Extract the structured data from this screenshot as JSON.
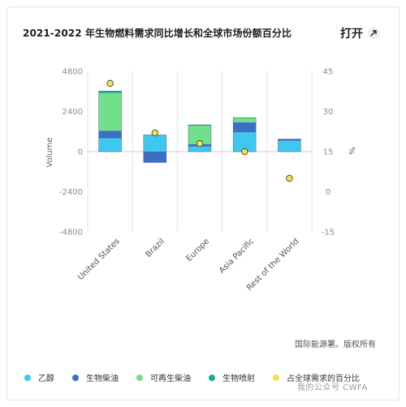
{
  "header": {
    "title": "2021-2022 年生物燃料需求同比增长和全球市场份额百分比",
    "open_label": "打开",
    "open_icon": "expand-icon"
  },
  "source": "国际能源署。版权所有",
  "watermark": "我的公众号 CWFA",
  "legend": [
    {
      "label": "乙醇",
      "color": "#3ec8f0"
    },
    {
      "label": "生物柴油",
      "color": "#3a6fc4"
    },
    {
      "label": "可再生柴油",
      "color": "#72e08a"
    },
    {
      "label": "生物喷射",
      "color": "#1aa999"
    },
    {
      "label": "占全球需求的百分比",
      "color": "#f2e24a"
    }
  ],
  "chart_data": {
    "type": "bar",
    "stacked": true,
    "categories": [
      "United States",
      "Brazil",
      "Europe",
      "Asia Pacific",
      "Rest of the World"
    ],
    "series": [
      {
        "name": "乙醇",
        "color": "#3ec8f0",
        "values": [
          800,
          1000,
          300,
          1150,
          650
        ]
      },
      {
        "name": "生物柴油",
        "color": "#3a6fc4",
        "values": [
          450,
          -650,
          150,
          600,
          100
        ]
      },
      {
        "name": "可再生柴油",
        "color": "#72e08a",
        "values": [
          2250,
          0,
          1100,
          270,
          0
        ]
      },
      {
        "name": "生物喷射",
        "color": "#1aa999",
        "values": [
          120,
          0,
          50,
          10,
          0
        ]
      }
    ],
    "share_series": {
      "name": "占全球需求的百分比",
      "color": "#f2e24a",
      "values": [
        40.5,
        22,
        18,
        15,
        5
      ]
    },
    "ylabel": "Volume",
    "y2label": "%",
    "ylim": [
      -4800,
      4800
    ],
    "y2lim": [
      -15,
      45
    ],
    "yticks": [
      "4800",
      "2400",
      "0",
      "-2400",
      "-4800"
    ],
    "y2ticks": [
      "45",
      "30",
      "15",
      "0",
      "-15"
    ],
    "grid": true
  }
}
